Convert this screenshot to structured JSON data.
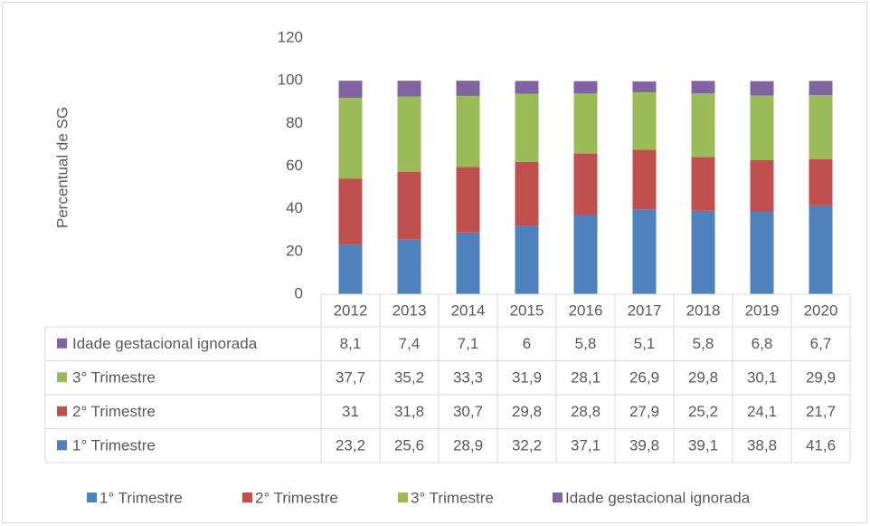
{
  "chart_data": {
    "type": "bar",
    "stacked": true,
    "ylabel": "Percentual de SG",
    "categories": [
      "2012",
      "2013",
      "2014",
      "2015",
      "2016",
      "2017",
      "2018",
      "2019",
      "2020"
    ],
    "series": [
      {
        "name": "1° Trimestre",
        "color": "#4f81bd",
        "values": [
          23.2,
          25.6,
          28.9,
          32.2,
          37.1,
          39.8,
          39.1,
          38.8,
          41.6
        ],
        "value_labels": [
          "23,2",
          "25,6",
          "28,9",
          "32,2",
          "37,1",
          "39,8",
          "39,1",
          "38,8",
          "41,6"
        ]
      },
      {
        "name": "2° Trimestre",
        "color": "#c0504d",
        "values": [
          31,
          31.8,
          30.7,
          29.8,
          28.8,
          27.9,
          25.2,
          24.1,
          21.7
        ],
        "value_labels": [
          "31",
          "31,8",
          "30,7",
          "29,8",
          "28,8",
          "27,9",
          "25,2",
          "24,1",
          "21,7"
        ]
      },
      {
        "name": "3° Trimestre",
        "color": "#9bbb59",
        "values": [
          37.7,
          35.2,
          33.3,
          31.9,
          28.1,
          26.9,
          29.8,
          30.1,
          29.9
        ],
        "value_labels": [
          "37,7",
          "35,2",
          "33,3",
          "31,9",
          "28,1",
          "26,9",
          "29,8",
          "30,1",
          "29,9"
        ]
      },
      {
        "name": "Idade gestacional ignorada",
        "color": "#8064a2",
        "values": [
          8.1,
          7.4,
          7.1,
          6,
          5.8,
          5.1,
          5.8,
          6.8,
          6.7
        ],
        "value_labels": [
          "8,1",
          "7,4",
          "7,1",
          "6",
          "5,8",
          "5,1",
          "5,8",
          "6,8",
          "6,7"
        ]
      }
    ],
    "ylim": [
      0,
      120
    ],
    "yticks": [
      0,
      20,
      40,
      60,
      80,
      100,
      120
    ],
    "grid": false,
    "legend": "bottom"
  }
}
